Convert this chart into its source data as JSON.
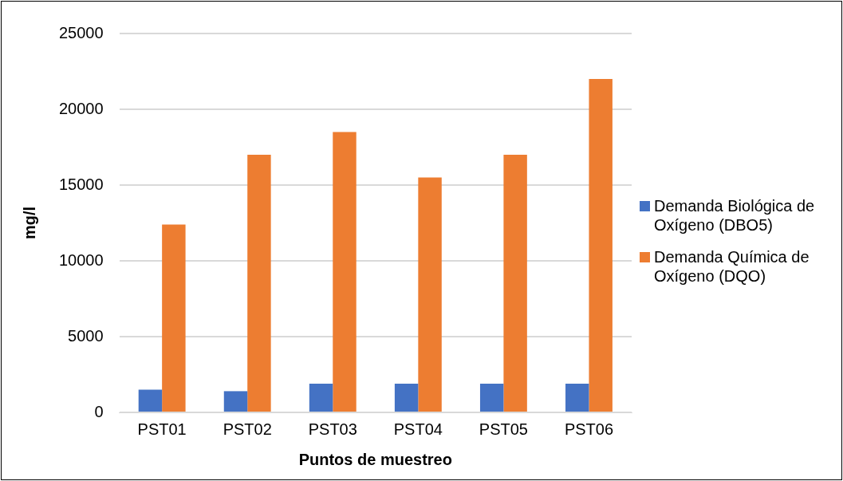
{
  "chart_data": {
    "type": "bar",
    "xlabel": "Puntos de muestreo",
    "ylabel": "mg/l",
    "categories": [
      "PST01",
      "PST02",
      "PST03",
      "PST04",
      "PST05",
      "PST06"
    ],
    "series": [
      {
        "name": "Demanda Biológica de Oxígeno (DBO5)",
        "color": "#4472c4",
        "values": [
          1500,
          1400,
          1900,
          1900,
          1900,
          1900
        ]
      },
      {
        "name": "Demanda Química de Oxígeno (DQO)",
        "color": "#ed7d31",
        "values": [
          12400,
          17000,
          18500,
          15500,
          17000,
          22000
        ]
      }
    ],
    "ylim": [
      0,
      25000
    ],
    "yticks": [
      0,
      5000,
      10000,
      15000,
      20000,
      25000
    ],
    "grid": "y",
    "legend": "right"
  }
}
